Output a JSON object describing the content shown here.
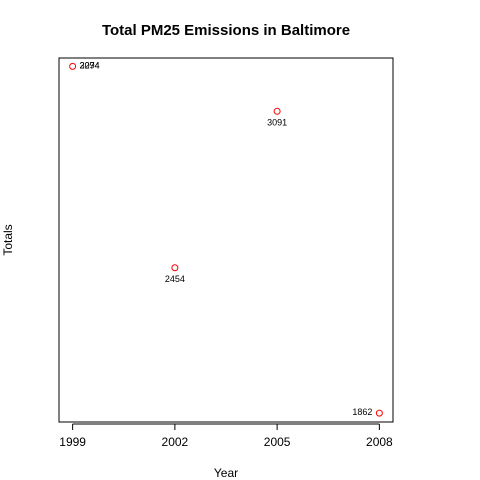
{
  "chart_data": {
    "type": "scatter",
    "title": "Total PM25 Emissions in Baltimore",
    "xlabel": "Year",
    "ylabel": "Totals",
    "x": [
      1999,
      2002,
      2005,
      2008
    ],
    "x_ticks": [
      "1999",
      "2002",
      "2005",
      "2008"
    ],
    "y": [
      3274,
      2454,
      3091,
      1862
    ],
    "data_labels": [
      "3274",
      "2454",
      "3091",
      "1862"
    ],
    "overlay_label": "2094",
    "xlim": [
      1998.6,
      2008.4
    ],
    "ylim": [
      1826,
      3308
    ],
    "marker": "open-circle",
    "marker_color": "#ff0000",
    "y_ticks_shown": false
  }
}
